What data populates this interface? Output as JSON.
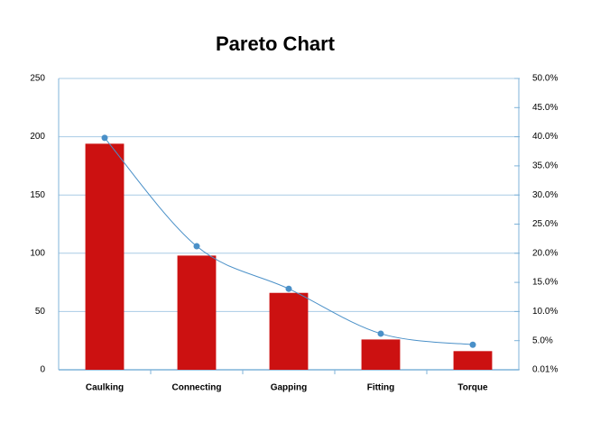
{
  "chart_data": {
    "type": "bar",
    "title": "Pareto Chart",
    "categories": [
      "Caulking",
      "Connecting",
      "Gapping",
      "Fitting",
      "Torque"
    ],
    "series": [
      {
        "type": "bar",
        "color": "#cc1111",
        "values": [
          194,
          98,
          66,
          26,
          16
        ]
      },
      {
        "type": "line",
        "axis": "y2",
        "color": "#4a90c8",
        "values": [
          39.8,
          21.2,
          13.9,
          6.2,
          4.3
        ]
      }
    ],
    "ylim": [
      0,
      250
    ],
    "yticks": [
      0,
      50,
      100,
      150,
      200,
      250
    ],
    "y2lim": [
      0,
      50
    ],
    "y2ticks": [
      {
        "value": 0.01,
        "label": "0.01%"
      },
      {
        "value": 5,
        "label": "5.0%"
      },
      {
        "value": 10,
        "label": "10.0%"
      },
      {
        "value": 15,
        "label": "15.0%"
      },
      {
        "value": 20,
        "label": "20.0%"
      },
      {
        "value": 25,
        "label": "25.0%"
      },
      {
        "value": 30,
        "label": "30.0%"
      },
      {
        "value": 35,
        "label": "35.0%"
      },
      {
        "value": 40,
        "label": "40.0%"
      },
      {
        "value": 45,
        "label": "45.0%"
      },
      {
        "value": 50,
        "label": "50.0%"
      }
    ],
    "grid": true
  }
}
